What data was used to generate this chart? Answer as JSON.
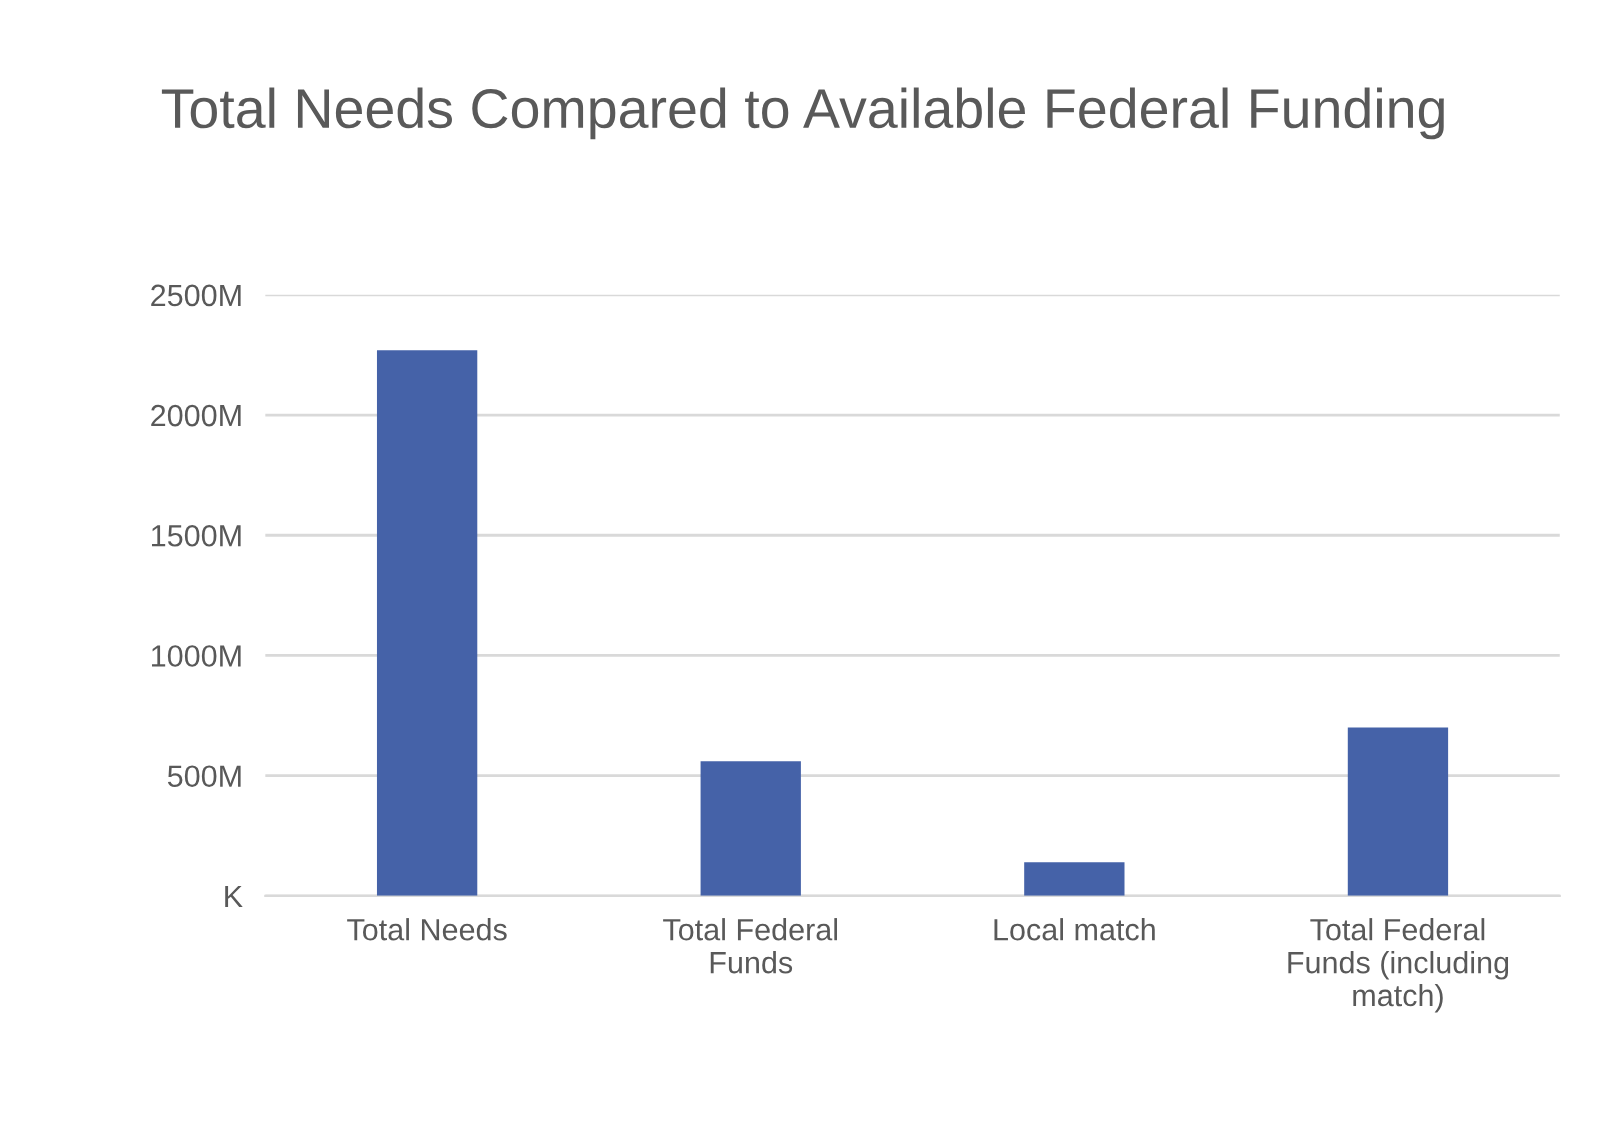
{
  "chart_data": {
    "type": "bar",
    "title": "Total Needs Compared to Available Federal Funding",
    "categories": [
      "Total Needs",
      "Total Federal Funds",
      "Local match",
      "Total Federal Funds (including match)"
    ],
    "values": [
      2270,
      560,
      140,
      700
    ],
    "color": "#4562a8",
    "ylim": [
      0,
      2500
    ],
    "yticks": [
      {
        "value": 0,
        "label": "K"
      },
      {
        "value": 500,
        "label": "500M"
      },
      {
        "value": 1000,
        "label": "1000M"
      },
      {
        "value": 1500,
        "label": "1500M"
      },
      {
        "value": 2000,
        "label": "2000M"
      },
      {
        "value": 2500,
        "label": "2500M"
      }
    ],
    "grid": "y"
  }
}
